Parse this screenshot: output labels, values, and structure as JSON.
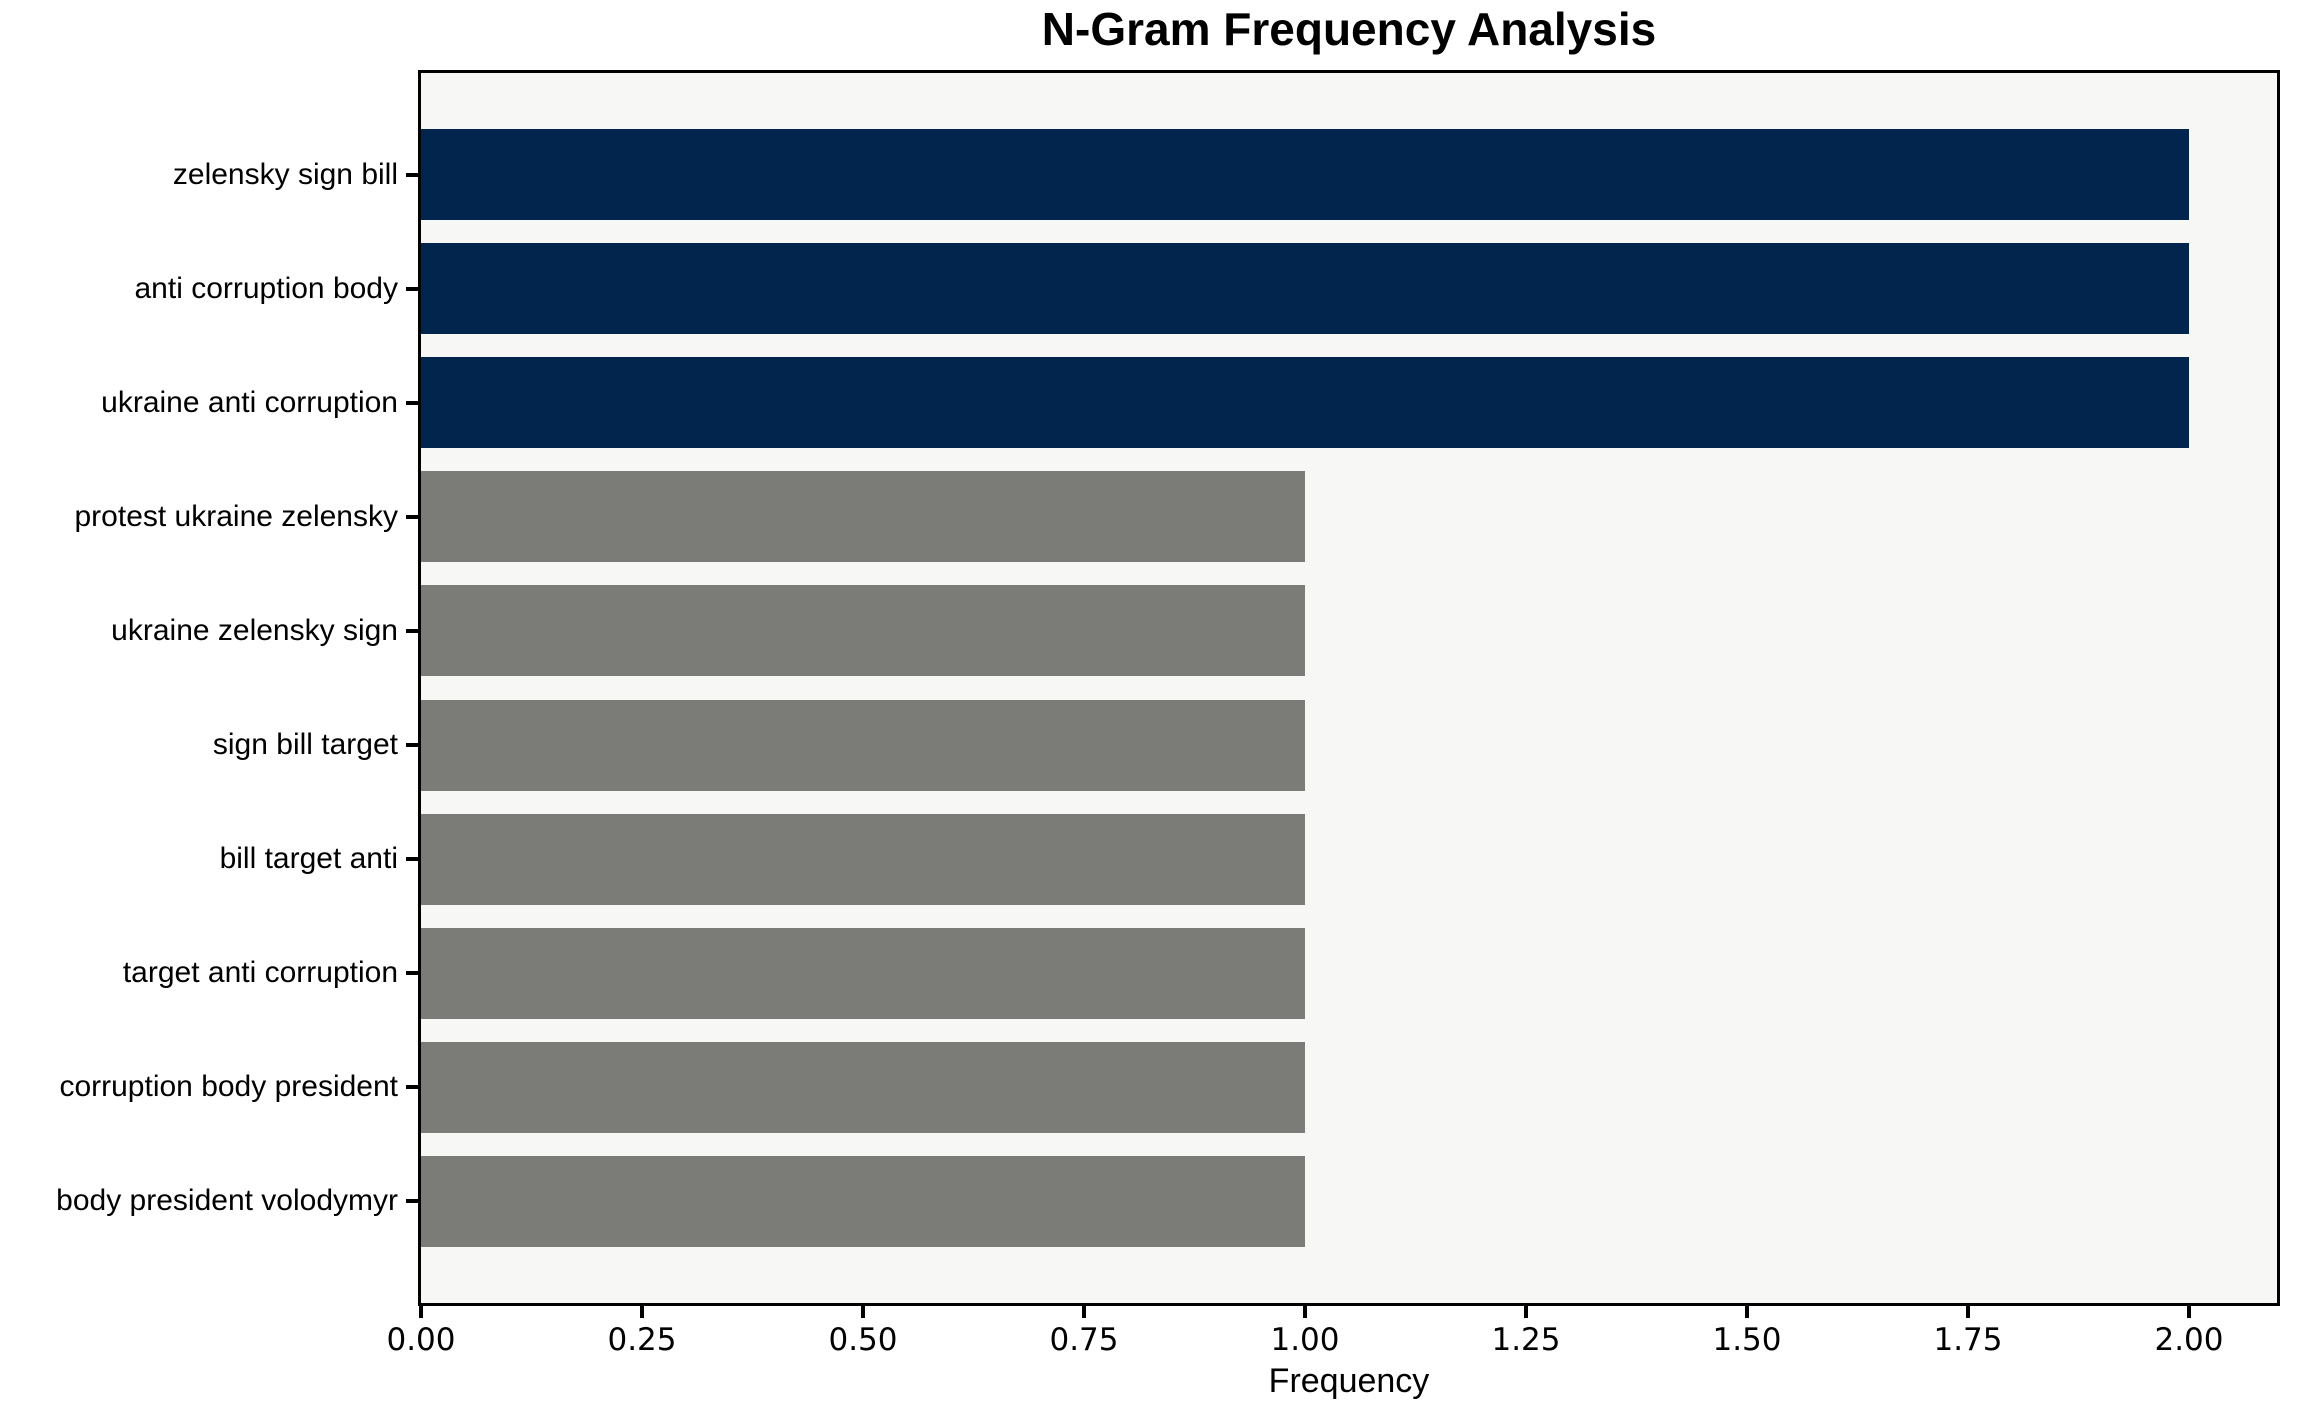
{
  "chart_data": {
    "type": "bar",
    "orientation": "horizontal",
    "title": "N-Gram Frequency Analysis",
    "xlabel": "Frequency",
    "ylabel": "",
    "categories": [
      "zelensky sign bill",
      "anti corruption body",
      "ukraine anti corruption",
      "protest ukraine zelensky",
      "ukraine zelensky sign",
      "sign bill target",
      "bill target anti",
      "target anti corruption",
      "corruption body president",
      "body president volodymyr"
    ],
    "values": [
      2,
      2,
      2,
      1,
      1,
      1,
      1,
      1,
      1,
      1
    ],
    "bar_colors": [
      "#02254d",
      "#02254d",
      "#02254d",
      "#7b7b78",
      "#7b7b78",
      "#7b7b78",
      "#7b7b78",
      "#7b7b78",
      "#7b7b78",
      "#7b7b78"
    ],
    "x_ticks": [
      0,
      0.25,
      0.5,
      0.75,
      1.0,
      1.25,
      1.5,
      1.75,
      2.0
    ],
    "x_tick_labels": [
      "0.00",
      "0.25",
      "0.50",
      "0.75",
      "1.00",
      "1.25",
      "1.50",
      "1.75",
      "2.00"
    ],
    "xlim": [
      0,
      2.1
    ],
    "grid": false,
    "legend": "none",
    "colors": {
      "highlight_bar": "#02254d",
      "default_bar": "#7b7b78",
      "plot_background": "#f7f7f6",
      "figure_background": "#ffffff",
      "axis": "#000000",
      "text": "#000000"
    }
  }
}
